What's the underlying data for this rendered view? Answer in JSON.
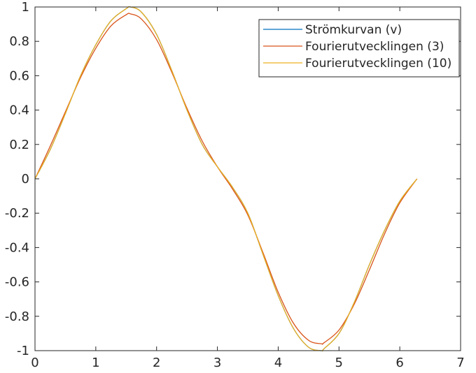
{
  "chart_data": {
    "type": "line",
    "title": "",
    "xlabel": "",
    "ylabel": "",
    "xlim": [
      0,
      7
    ],
    "ylim": [
      -1,
      1
    ],
    "x_ticks": [
      0,
      1,
      2,
      3,
      4,
      5,
      6,
      7
    ],
    "y_ticks": [
      -1,
      -0.8,
      -0.6,
      -0.4,
      -0.2,
      0,
      0.2,
      0.4,
      0.6,
      0.8,
      1
    ],
    "x_tick_labels": [
      "0",
      "1",
      "2",
      "3",
      "4",
      "5",
      "6",
      "7"
    ],
    "y_tick_labels": [
      "-1",
      "-0.8",
      "-0.6",
      "-0.4",
      "-0.2",
      "0",
      "0.2",
      "0.4",
      "0.6",
      "0.8",
      "1"
    ],
    "grid": false,
    "legend": "top-right",
    "series": [
      {
        "name": "Strömkurvan (v)",
        "color": "#0072BD",
        "x": [
          0,
          0.25,
          0.5,
          0.75,
          1.0,
          1.25,
          1.5,
          1.571,
          1.75,
          2.0,
          2.25,
          2.5,
          2.75,
          3.0,
          3.25,
          3.5,
          3.75,
          4.0,
          4.25,
          4.5,
          4.712,
          4.75,
          5.0,
          5.25,
          5.5,
          5.75,
          6.0,
          6.283
        ],
        "y": [
          0,
          0.17,
          0.38,
          0.6,
          0.78,
          0.92,
          0.99,
          1.0,
          0.97,
          0.84,
          0.63,
          0.4,
          0.2,
          0.07,
          -0.05,
          -0.2,
          -0.44,
          -0.68,
          -0.87,
          -0.98,
          -1.0,
          -0.99,
          -0.9,
          -0.72,
          -0.5,
          -0.3,
          -0.13,
          0
        ]
      },
      {
        "name": "Fourierutvecklingen (3)",
        "color": "#D95319",
        "x": [
          0,
          0.25,
          0.5,
          0.75,
          1.0,
          1.25,
          1.5,
          1.571,
          1.75,
          2.0,
          2.25,
          2.5,
          2.75,
          3.0,
          3.25,
          3.5,
          3.75,
          4.0,
          4.25,
          4.5,
          4.712,
          4.75,
          5.0,
          5.25,
          5.5,
          5.75,
          6.0,
          6.283
        ],
        "y": [
          0,
          0.19,
          0.39,
          0.59,
          0.76,
          0.89,
          0.955,
          0.96,
          0.93,
          0.81,
          0.62,
          0.41,
          0.22,
          0.07,
          -0.06,
          -0.21,
          -0.43,
          -0.66,
          -0.84,
          -0.94,
          -0.96,
          -0.955,
          -0.88,
          -0.73,
          -0.53,
          -0.32,
          -0.14,
          0
        ]
      },
      {
        "name": "Fourierutvecklingen (10)",
        "color": "#EDB120",
        "x": [
          0,
          0.25,
          0.5,
          0.75,
          1.0,
          1.25,
          1.5,
          1.571,
          1.75,
          2.0,
          2.25,
          2.5,
          2.75,
          3.0,
          3.25,
          3.5,
          3.75,
          4.0,
          4.25,
          4.5,
          4.712,
          4.75,
          5.0,
          5.25,
          5.5,
          5.75,
          6.0,
          6.283
        ],
        "y": [
          0,
          0.17,
          0.38,
          0.6,
          0.78,
          0.92,
          0.99,
          1.0,
          0.97,
          0.84,
          0.63,
          0.4,
          0.2,
          0.07,
          -0.05,
          -0.2,
          -0.44,
          -0.68,
          -0.87,
          -0.98,
          -1.0,
          -0.99,
          -0.9,
          -0.72,
          -0.5,
          -0.3,
          -0.13,
          0
        ]
      }
    ]
  }
}
